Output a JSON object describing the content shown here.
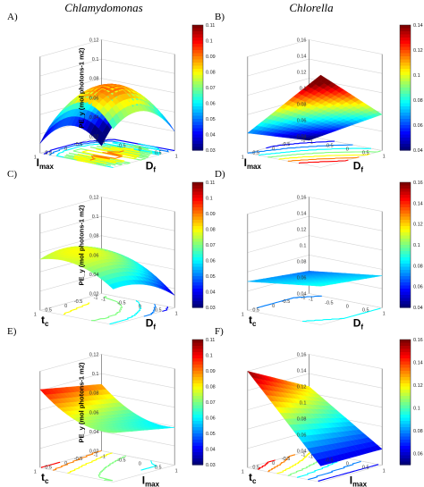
{
  "figure": {
    "col_titles": [
      "Chlamydomonas",
      "Chlorella"
    ]
  },
  "colors": {
    "axis": "#555555",
    "grid": "#d6d6d6",
    "jet": [
      "#00007f",
      "#0000ff",
      "#007fff",
      "#00ffff",
      "#7fff7f",
      "#ffff00",
      "#ff7f00",
      "#ff0000",
      "#7f0000"
    ]
  },
  "chart_data": [
    {
      "type": "surface",
      "panel": "A)",
      "xlabel": "I_max",
      "ylabel": "D_f",
      "zlabel": "PE_y (mol photons-1 m2)",
      "x_ticks": [
        "1",
        "0.5",
        "0",
        "-0.5",
        "-1"
      ],
      "y_ticks": [
        "-1",
        "-0.5",
        "0",
        "0.5",
        "1"
      ],
      "z_ticks": [
        "0.12",
        "0.1",
        "0.08",
        "0.06",
        "0.04",
        "0.02"
      ],
      "zlim": [
        0.02,
        0.12
      ],
      "colorbar": {
        "ticks": [
          "0.11",
          "0.1",
          "0.09",
          "0.08",
          "0.07",
          "0.06",
          "0.05",
          "0.04",
          "0.03"
        ],
        "range": [
          0.03,
          0.11
        ]
      },
      "model": {
        "c": 0.09,
        "cx": 0.01,
        "cy": 0.015,
        "cxx": -0.02,
        "cyy": -0.035,
        "cxy": 0.0
      }
    },
    {
      "type": "surface",
      "panel": "B)",
      "xlabel": "I_max",
      "ylabel": "D_f",
      "zlabel": "",
      "x_ticks": [
        "1",
        "0.5",
        "0",
        "-0.5",
        "-1"
      ],
      "y_ticks": [
        "-1",
        "-0.5",
        "0",
        "0.5",
        "1"
      ],
      "z_ticks": [
        "0.16",
        "0.14",
        "0.12",
        "0.1",
        "0.08",
        "0.06",
        "0.04"
      ],
      "zlim": [
        0.04,
        0.16
      ],
      "colorbar": {
        "ticks": [
          "0.14",
          "0.12",
          "0.1",
          "0.08",
          "0.06",
          "0.04"
        ],
        "range": [
          0.04,
          0.14
        ]
      },
      "model": {
        "c": 0.085,
        "cx": 0.025,
        "cy": 0.035,
        "cxx": 0.0,
        "cyy": 0.0,
        "cxy": 0.01
      }
    },
    {
      "type": "surface",
      "panel": "C)",
      "xlabel": "t_c",
      "ylabel": "D_f",
      "zlabel": "PE_y (mol photons-1 m2)",
      "x_ticks": [
        "1",
        "0.5",
        "0",
        "-0.5",
        "-1"
      ],
      "y_ticks": [
        "-1",
        "-0.5",
        "0",
        "0.5",
        "1"
      ],
      "z_ticks": [
        "0.12",
        "0.1",
        "0.08",
        "0.06",
        "0.04",
        "0.02"
      ],
      "zlim": [
        0.02,
        0.12
      ],
      "colorbar": {
        "ticks": [
          "0.11",
          "0.1",
          "0.09",
          "0.08",
          "0.07",
          "0.06",
          "0.05",
          "0.04",
          "0.03"
        ],
        "range": [
          0.03,
          0.11
        ]
      },
      "model": {
        "c": 0.075,
        "cx": 0.008,
        "cy": -0.012,
        "cxx": -0.008,
        "cyy": -0.01,
        "cxy": 0.004
      }
    },
    {
      "type": "surface",
      "panel": "D)",
      "xlabel": "t_c",
      "ylabel": "D_f",
      "zlabel": "",
      "x_ticks": [
        "1",
        "0.5",
        "0",
        "-0.5",
        "-1"
      ],
      "y_ticks": [
        "-1",
        "-0.5",
        "0",
        "0.5",
        "1"
      ],
      "z_ticks": [
        "0.16",
        "0.14",
        "0.12",
        "0.1",
        "0.08",
        "0.06",
        "0.04"
      ],
      "zlim": [
        0.04,
        0.16
      ],
      "colorbar": {
        "ticks": [
          "0.16",
          "0.14",
          "0.12",
          "0.1",
          "0.08",
          "0.06",
          "0.04"
        ],
        "range": [
          0.04,
          0.16
        ]
      },
      "model": {
        "c": 0.078,
        "cx": 0.004,
        "cy": 0.006,
        "cxx": 0.0,
        "cyy": 0.0,
        "cxy": 0.0
      }
    },
    {
      "type": "surface",
      "panel": "E)",
      "xlabel": "t_c",
      "ylabel": "I_max",
      "zlabel": "PE_y (mol photons-1 m2)",
      "x_ticks": [
        "1",
        "0.5",
        "0",
        "-0.5",
        "-1"
      ],
      "y_ticks": [
        "-1",
        "-0.5",
        "0",
        "0.5",
        "1"
      ],
      "z_ticks": [
        "0.12",
        "0.1",
        "0.08",
        "0.06",
        "0.04",
        "0.02"
      ],
      "zlim": [
        0.02,
        0.12
      ],
      "colorbar": {
        "ticks": [
          "0.11",
          "0.1",
          "0.09",
          "0.08",
          "0.07",
          "0.06",
          "0.05",
          "0.04",
          "0.03"
        ],
        "range": [
          0.03,
          0.11
        ]
      },
      "model": {
        "c": 0.07,
        "cx": 0.006,
        "cy": -0.015,
        "cxx": 0.0,
        "cyy": 0.01,
        "cxy": 0.0
      }
    },
    {
      "type": "surface",
      "panel": "F)",
      "xlabel": "t_c",
      "ylabel": "I_max",
      "zlabel": "",
      "x_ticks": [
        "1",
        "0.5",
        "0",
        "-0.5",
        "-1"
      ],
      "y_ticks": [
        "-1",
        "-0.5",
        "0",
        "0.5",
        "1"
      ],
      "z_ticks": [
        "0.16",
        "0.14",
        "0.12",
        "0.1",
        "0.08",
        "0.06",
        "0.04"
      ],
      "zlim": [
        0.04,
        0.16
      ],
      "colorbar": {
        "ticks": [
          "0.16",
          "0.14",
          "0.12",
          "0.1",
          "0.08",
          "0.06"
        ],
        "range": [
          0.05,
          0.16
        ]
      },
      "model": {
        "c": 0.1,
        "cx": 0.01,
        "cy": -0.04,
        "cxx": 0.0,
        "cyy": 0.0,
        "cxy": -0.01
      }
    }
  ]
}
